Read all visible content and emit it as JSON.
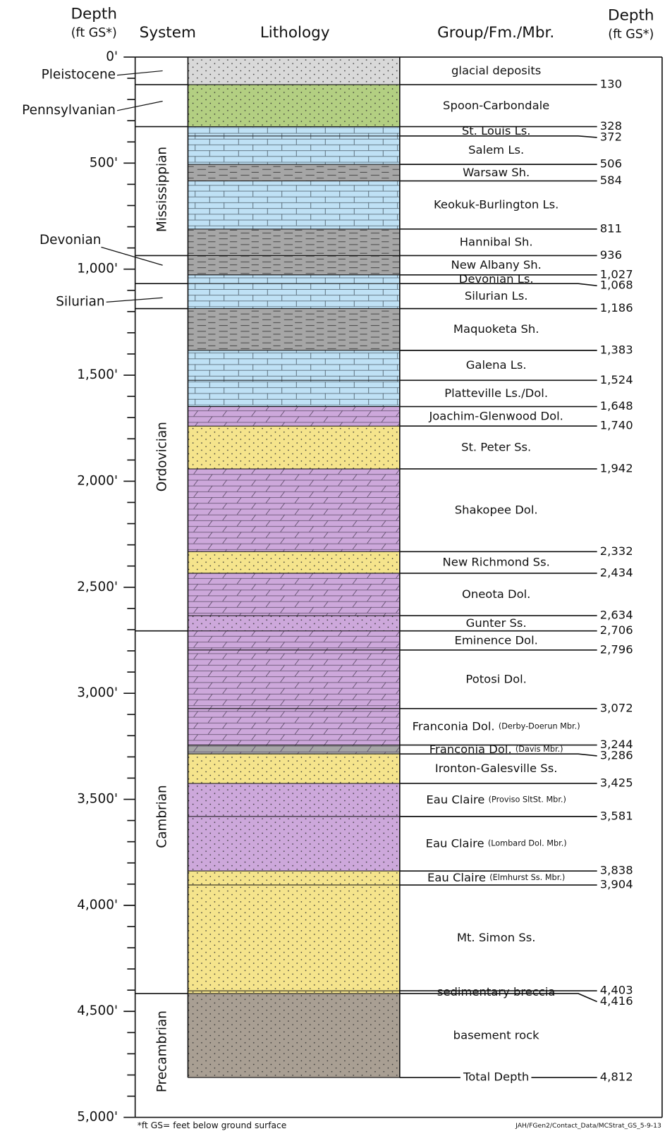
{
  "headers": {
    "depth_left_1": "Depth",
    "depth_left_2": "(ft GS*)",
    "system": "System",
    "lithology": "Lithology",
    "formation": "Group/Fm./Mbr.",
    "depth_right_1": "Depth",
    "depth_right_2": "(ft GS*)"
  },
  "depth_axis": [
    "0'",
    "500'",
    "1,000'",
    "1,500'",
    "2,000'",
    "2,500'",
    "3,000'",
    "3,500'",
    "4,000'",
    "4,500'",
    "5,000'"
  ],
  "systems": [
    "Pleistocene",
    "Pennsylvanian",
    "Mississippian",
    "Devonian",
    "Silurian",
    "Ordovician",
    "Cambrian",
    "Precambrian"
  ],
  "formations": [
    {
      "name": "glacial deposits",
      "base": "130",
      "fill": "#d9d9d9"
    },
    {
      "name": "Spoon-Carbondale",
      "base": "328",
      "fill": "#b3cf82"
    },
    {
      "name": "St. Louis Ls.",
      "base": "372",
      "fill": "#bfe1f5"
    },
    {
      "name": "Salem Ls.",
      "base": "506",
      "fill": "#bfe1f5"
    },
    {
      "name": "Warsaw Sh.",
      "base": "584",
      "fill": "#a6a6a6"
    },
    {
      "name": "Keokuk-Burlington Ls.",
      "base": "811",
      "fill": "#bfe1f5"
    },
    {
      "name": "Hannibal Sh.",
      "base": "936",
      "fill": "#a6a6a6"
    },
    {
      "name": "New Albany Sh.",
      "base": "1,027",
      "fill": "#a6a6a6"
    },
    {
      "name": "Devonian Ls.",
      "base": "1,068",
      "fill": "#bfe1f5"
    },
    {
      "name": "Silurian Ls.",
      "base": "1,186",
      "fill": "#bfe1f5"
    },
    {
      "name": "Maquoketa Sh.",
      "base": "1,383",
      "fill": "#a6a6a6"
    },
    {
      "name": "Galena Ls.",
      "base": "1,524",
      "fill": "#bfe1f5"
    },
    {
      "name": "Platteville Ls./Dol.",
      "base": "1,648",
      "fill": "#bfe1f5"
    },
    {
      "name": "Joachim-Glenwood Dol.",
      "base": "1,740",
      "fill": "#cda8db"
    },
    {
      "name": "St. Peter Ss.",
      "base": "1,942",
      "fill": "#f5e48c"
    },
    {
      "name": "Shakopee Dol.",
      "base": "2,332",
      "fill": "#cda8db"
    },
    {
      "name": "New Richmond Ss.",
      "base": "2,434",
      "fill": "#f5e48c"
    },
    {
      "name": "Oneota Dol.",
      "base": "2,634",
      "fill": "#cda8db"
    },
    {
      "name": "Gunter Ss.",
      "base": "2,706",
      "fill": "#cda8db"
    },
    {
      "name": "Eminence Dol.",
      "base": "2,796",
      "fill": "#cda8db"
    },
    {
      "name": "Potosi Dol.",
      "base": "3,072",
      "fill": "#cda8db"
    },
    {
      "name": "Franconia Dol.",
      "note": "(Derby-Doerun Mbr.)",
      "base": "3,244",
      "fill": "#cda8db"
    },
    {
      "name": "Franconia Dol.",
      "note": "(Davis Mbr.)",
      "base": "3,286",
      "fill": "#a6a6a6"
    },
    {
      "name": "Ironton-Galesville Ss.",
      "base": "3,425",
      "fill": "#f5e48c"
    },
    {
      "name": "Eau Claire",
      "note": "(Proviso SltSt. Mbr.)",
      "base": "3,581",
      "fill": "#cda8db"
    },
    {
      "name": "Eau Claire",
      "note": "(Lombard Dol. Mbr.)",
      "base": "3,838",
      "fill": "#cda8db"
    },
    {
      "name": "Eau Claire",
      "note": "(Elmhurst Ss. Mbr.)",
      "base": "3,904",
      "fill": "#f5e48c"
    },
    {
      "name": "Mt. Simon Ss.",
      "base": "4,403",
      "fill": "#f5e48c"
    },
    {
      "name": "sedimentary breccia",
      "base": "4,416",
      "fill": "#f5e48c"
    },
    {
      "name": "basement rock",
      "base": "4,812",
      "fill": "#a99f93"
    }
  ],
  "total_depth": "Total Depth",
  "footnote": "*ft GS= feet below ground surface",
  "credit": "JAH/FGen2/Contact_Data/MCStrat_GS_5-9-13"
}
